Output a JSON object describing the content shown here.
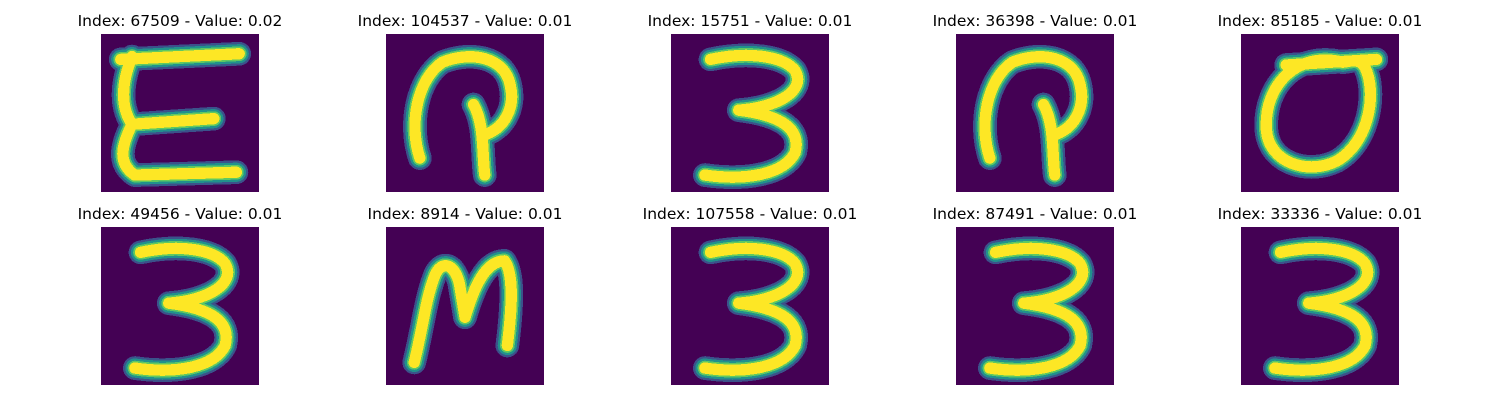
{
  "colormap": [
    "#440154",
    "#3b528b",
    "#21918c",
    "#5ec962",
    "#fde725"
  ],
  "panels": [
    {
      "title": "Index: 67509 - Value: 0.02",
      "glyph": "E"
    },
    {
      "title": "Index: 104537 - Value: 0.01",
      "glyph": "loop-hook"
    },
    {
      "title": "Index: 15751 - Value: 0.01",
      "glyph": "3"
    },
    {
      "title": "Index: 36398 - Value: 0.01",
      "glyph": "loop-hook"
    },
    {
      "title": "Index: 85185 - Value: 0.01",
      "glyph": "0"
    },
    {
      "title": "Index: 49456 - Value: 0.01",
      "glyph": "3"
    },
    {
      "title": "Index: 8914 - Value: 0.01",
      "glyph": "M"
    },
    {
      "title": "Index: 107558 - Value: 0.01",
      "glyph": "3"
    },
    {
      "title": "Index: 87491 - Value: 0.01",
      "glyph": "3"
    },
    {
      "title": "Index: 33336 - Value: 0.01",
      "glyph": "3"
    }
  ]
}
